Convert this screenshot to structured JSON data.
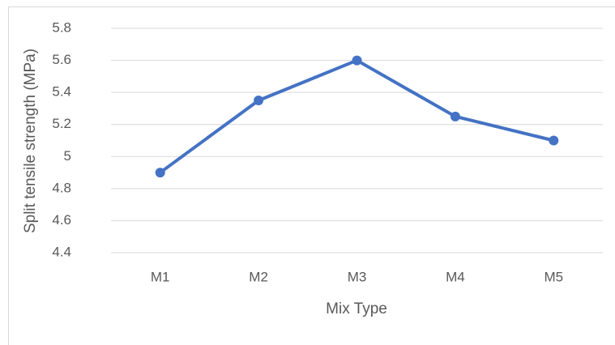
{
  "chart_data": {
    "type": "line",
    "y_label": "Split tensile strength (MPa)",
    "x_label": "Mix Type",
    "categories": [
      "M1",
      "M2",
      "M3",
      "M4",
      "M5"
    ],
    "series": [
      {
        "name": "Split tensile strength",
        "color": "#4472c4",
        "values": [
          4.9,
          5.35,
          5.6,
          5.25,
          5.1
        ]
      }
    ],
    "ylim": [
      4.4,
      5.8
    ],
    "yticks": [
      4.4,
      4.6,
      4.8,
      5,
      5.2,
      5.4,
      5.6,
      5.8
    ],
    "grid": true
  }
}
